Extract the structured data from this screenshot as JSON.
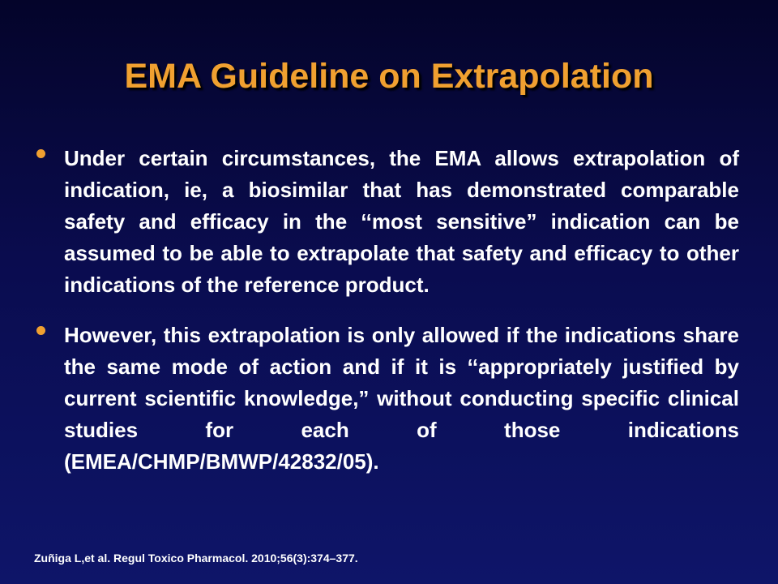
{
  "slide": {
    "title": "EMA Guideline on Extrapolation",
    "bullets": [
      {
        "text": "Under certain circumstances, the EMA allows extrapolation of indication, ie, a biosimilar that has demonstrated comparable safety and efficacy in the ‘‘most sensitive” indication can be assumed to be able to extrapolate that safety and efficacy to other indications of the reference product."
      },
      {
        "text": "However, this extrapolation is only allowed if the indications share the same mode of action and if it is ‘‘appropriately justified by current scientific knowledge,” without conducting specific clinical studies for each of those indications (EMEA/CHMP/BMWP/42832/05)."
      }
    ],
    "citation": "Zuñiga L,et al. Regul Toxico Pharmacol. 2010;56(3):374–377."
  },
  "colors": {
    "background_top": "#04042a",
    "background_bottom": "#0e1569",
    "title": "#f0a030",
    "bullet_marker": "#f0a030",
    "body_text": "#ffffff"
  }
}
